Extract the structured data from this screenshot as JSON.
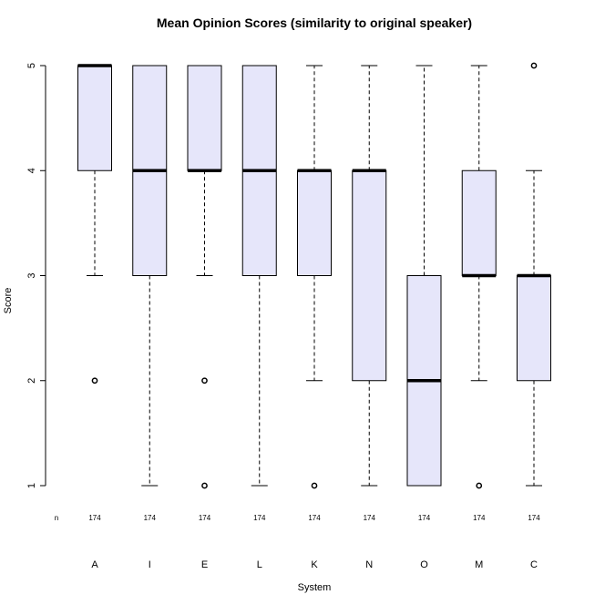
{
  "chart_data": {
    "type": "boxplot",
    "title": "Mean Opinion Scores (similarity to original speaker)",
    "xlabel": "System",
    "ylabel": "Score",
    "ylim": [
      1,
      5
    ],
    "yticks": [
      1,
      2,
      3,
      4,
      5
    ],
    "n_row_label": "n",
    "box_fill": "#e6e6fa",
    "categories": [
      "A",
      "I",
      "E",
      "L",
      "K",
      "N",
      "O",
      "M",
      "C"
    ],
    "boxes": [
      {
        "label": "A",
        "n": 174,
        "whisker_low": 3,
        "q1": 4,
        "median": 5,
        "q3": 5,
        "whisker_high": 5,
        "outliers": [
          2
        ]
      },
      {
        "label": "I",
        "n": 174,
        "whisker_low": 1,
        "q1": 3,
        "median": 4,
        "q3": 5,
        "whisker_high": 5,
        "outliers": []
      },
      {
        "label": "E",
        "n": 174,
        "whisker_low": 3,
        "q1": 4,
        "median": 4,
        "q3": 5,
        "whisker_high": 5,
        "outliers": [
          2,
          1
        ]
      },
      {
        "label": "L",
        "n": 174,
        "whisker_low": 1,
        "q1": 3,
        "median": 4,
        "q3": 5,
        "whisker_high": 5,
        "outliers": []
      },
      {
        "label": "K",
        "n": 174,
        "whisker_low": 2,
        "q1": 3,
        "median": 4,
        "q3": 4,
        "whisker_high": 5,
        "outliers": [
          1
        ]
      },
      {
        "label": "N",
        "n": 174,
        "whisker_low": 1,
        "q1": 2,
        "median": 4,
        "q3": 4,
        "whisker_high": 5,
        "outliers": []
      },
      {
        "label": "O",
        "n": 174,
        "whisker_low": 1,
        "q1": 1,
        "median": 2,
        "q3": 3,
        "whisker_high": 5,
        "outliers": []
      },
      {
        "label": "M",
        "n": 174,
        "whisker_low": 2,
        "q1": 3,
        "median": 3,
        "q3": 4,
        "whisker_high": 5,
        "outliers": [
          1
        ]
      },
      {
        "label": "C",
        "n": 174,
        "whisker_low": 1,
        "q1": 2,
        "median": 3,
        "q3": 3,
        "whisker_high": 4,
        "outliers": [
          5
        ]
      }
    ]
  }
}
